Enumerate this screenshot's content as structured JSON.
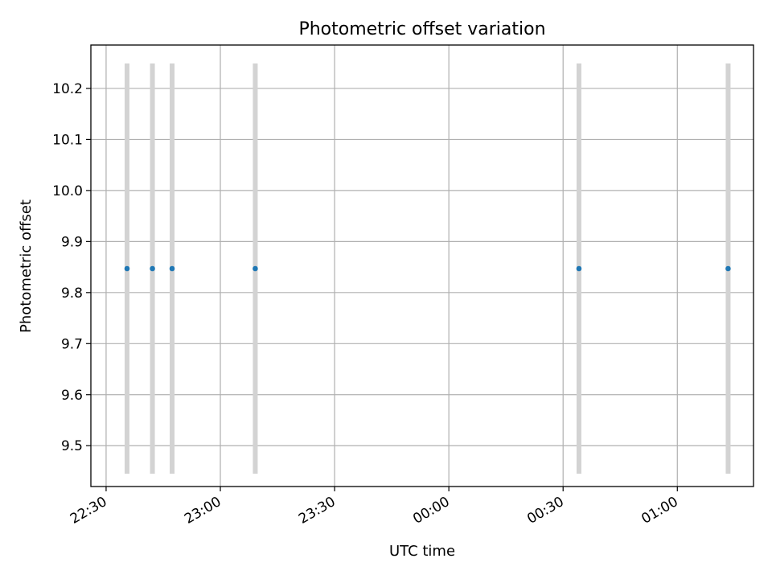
{
  "chart_data": {
    "type": "scatter",
    "title": "Photometric offset variation",
    "xlabel": "UTC time",
    "ylabel": "Photometric offset",
    "x_range_minutes": [
      -4,
      170
    ],
    "ylim": [
      9.42,
      10.285
    ],
    "x_ticks": [
      "22:30",
      "23:00",
      "23:30",
      "00:00",
      "00:30",
      "01:00"
    ],
    "x_ticks_min": [
      0,
      30,
      60,
      90,
      120,
      150
    ],
    "y_ticks": [
      9.5,
      9.6,
      9.7,
      9.8,
      9.9,
      10.0,
      10.1,
      10.2
    ],
    "y_tick_labels": [
      "9.5",
      "9.6",
      "9.7",
      "9.8",
      "9.9",
      "10.0",
      "10.1",
      "10.2"
    ],
    "grid": true,
    "colors": {
      "points": "#1f77b4",
      "error_bars": "#d3d3d3",
      "grid": "#b0b0b0"
    },
    "series": [
      {
        "x": [
          "22:35:30",
          "22:42:10",
          "22:47:20",
          "23:09:10",
          "00:34:10",
          "01:13:20"
        ],
        "y": [
          9.847,
          9.847,
          9.847,
          9.847,
          9.847,
          9.847
        ],
        "y_err": [
          0.402,
          0.402,
          0.402,
          0.402,
          0.402,
          0.402
        ]
      }
    ]
  }
}
